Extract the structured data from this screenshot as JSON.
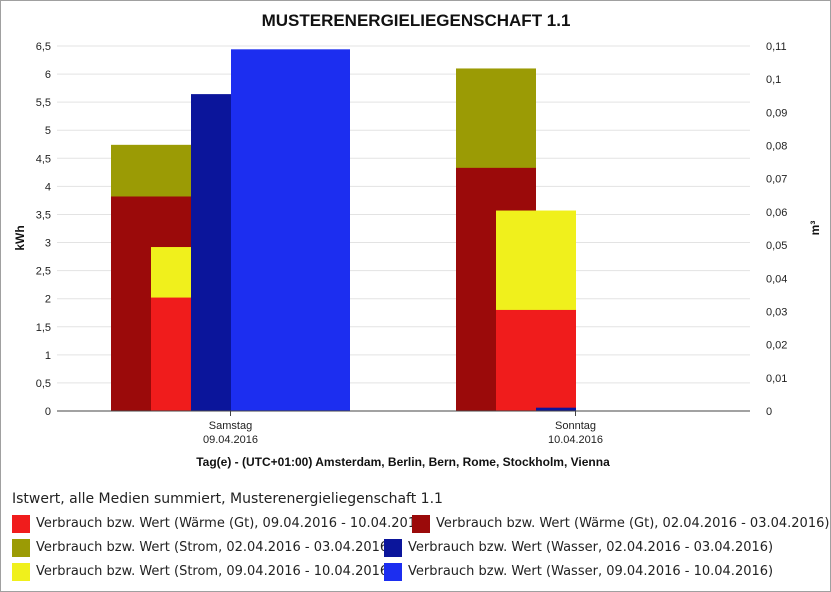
{
  "chart_data": {
    "type": "bar",
    "title": "MUSTERENERGIELIEGENSCHAFT 1.1",
    "xlabel": "Tag(e) - (UTC+01:00) Amsterdam, Berlin, Bern, Rome, Stockholm, Vienna",
    "ylabel_left": "kWh",
    "ylabel_right": "m³",
    "ylim_left": [
      0,
      6.5
    ],
    "ylim_right": [
      0,
      0.11
    ],
    "yticks_left": [
      "0",
      "0,5",
      "1",
      "1,5",
      "2",
      "2,5",
      "3",
      "3,5",
      "4",
      "4,5",
      "5",
      "5,5",
      "6",
      "6,5"
    ],
    "yticks_right": [
      "0",
      "0,01",
      "0,02",
      "0,03",
      "0,04",
      "0,05",
      "0,06",
      "0,07",
      "0,08",
      "0,09",
      "0,1",
      "0,11"
    ],
    "categories": [
      {
        "day": "Samstag",
        "date": "09.04.2016"
      },
      {
        "day": "Sonntag",
        "date": "10.04.2016"
      }
    ],
    "legend_title": "Istwert, alle Medien summiert, Musterenergieliegenschaft 1.1",
    "series": [
      {
        "name": "Verbrauch bzw. Wert (Wärme (Gt), 09.04.2016 - 10.04.2016)",
        "color": "#f01c1c",
        "axis": "left",
        "values": [
          2.02,
          1.8
        ]
      },
      {
        "name": "Verbrauch bzw. Wert (Wärme (Gt), 02.04.2016 - 03.04.2016)",
        "color": "#9b0a0a",
        "axis": "left",
        "values": [
          3.82,
          4.33
        ]
      },
      {
        "name": "Verbrauch bzw. Wert (Strom, 02.04.2016 - 03.04.2016)",
        "color": "#9b9b05",
        "axis": "left",
        "values": [
          4.74,
          6.1
        ]
      },
      {
        "name": "Verbrauch bzw. Wert (Wasser, 02.04.2016 - 03.04.2016)",
        "color": "#0b159b",
        "axis": "right",
        "values": [
          0.0955,
          0.001
        ]
      },
      {
        "name": "Verbrauch bzw. Wert (Strom, 09.04.2016 - 10.04.2016)",
        "color": "#f0f01c",
        "axis": "left",
        "values": [
          2.92,
          3.57
        ]
      },
      {
        "name": "Verbrauch bzw. Wert (Wasser, 09.04.2016 - 10.04.2016)",
        "color": "#1c2ef0",
        "axis": "right",
        "values": [
          0.109,
          0
        ]
      }
    ]
  }
}
